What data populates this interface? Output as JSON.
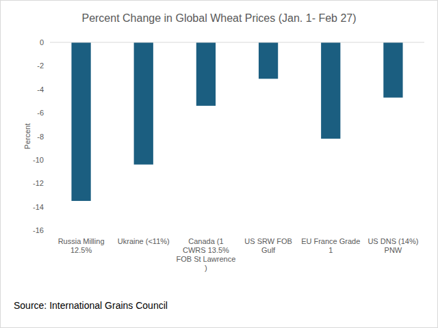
{
  "chart_data": {
    "type": "bar",
    "title": "Percent Change in Global Wheat Prices (Jan. 1- Feb 27)",
    "y_label": "Percent",
    "categories": [
      "Russia Milling 12.5%",
      "Ukraine (<11%)",
      "Canada (1 CWRS 13.5% FOB St Lawrence )",
      "US SRW FOB Gulf",
      "EU France Grade 1",
      "US DNS (14%) PNW"
    ],
    "values": [
      -13.5,
      -10.4,
      -5.4,
      -3.1,
      -8.2,
      -4.7
    ],
    "color": "#1b5e80",
    "ylim": [
      -16,
      0
    ],
    "yticks": [
      0,
      -2,
      -4,
      -6,
      -8,
      -10,
      -12,
      -14,
      -16
    ],
    "grid": false,
    "annotations": [
      "Source: International Grains Council"
    ]
  }
}
